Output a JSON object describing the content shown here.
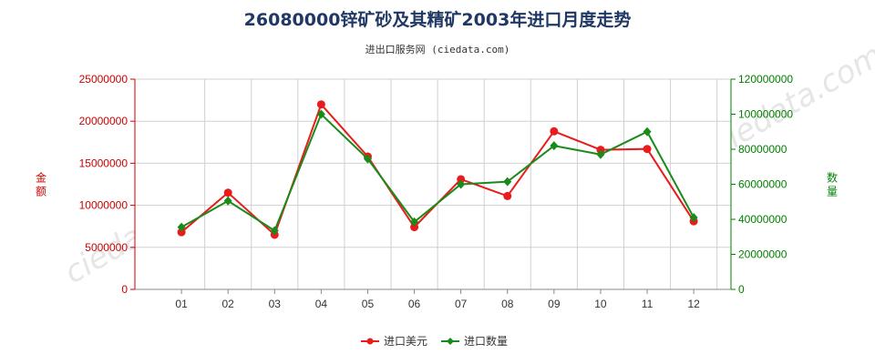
{
  "chart_data": {
    "type": "line",
    "title": "26080000锌矿砂及其精矿2003年进口月度走势",
    "subtitle": "进出口服务网 (ciedata.com)",
    "categories": [
      "01",
      "02",
      "03",
      "04",
      "05",
      "06",
      "07",
      "08",
      "09",
      "10",
      "11",
      "12"
    ],
    "y_left": {
      "label": "金额",
      "range": [
        0,
        25000000
      ],
      "ticks": [
        "0",
        "5000000",
        "10000000",
        "15000000",
        "20000000",
        "25000000"
      ],
      "color": "#cc0000"
    },
    "y_right": {
      "label": "数量",
      "range": [
        0,
        120000000
      ],
      "ticks": [
        "0",
        "20000000",
        "40000000",
        "60000000",
        "80000000",
        "100000000",
        "120000000"
      ],
      "color": "#008000"
    },
    "series": [
      {
        "name": "进口美元",
        "axis": "left",
        "color": "#e81c1c",
        "values": [
          6800000,
          11500000,
          6500000,
          22000000,
          15800000,
          7400000,
          13100000,
          11100000,
          18800000,
          16600000,
          16700000,
          8100000
        ]
      },
      {
        "name": "进口数量",
        "axis": "right",
        "color": "#1a8a1a",
        "values": [
          35500000,
          50500000,
          33500000,
          100000000,
          74500000,
          38500000,
          60000000,
          61500000,
          82000000,
          77000000,
          90000000,
          41000000
        ]
      }
    ],
    "grid": true,
    "legend_position": "bottom-center"
  }
}
